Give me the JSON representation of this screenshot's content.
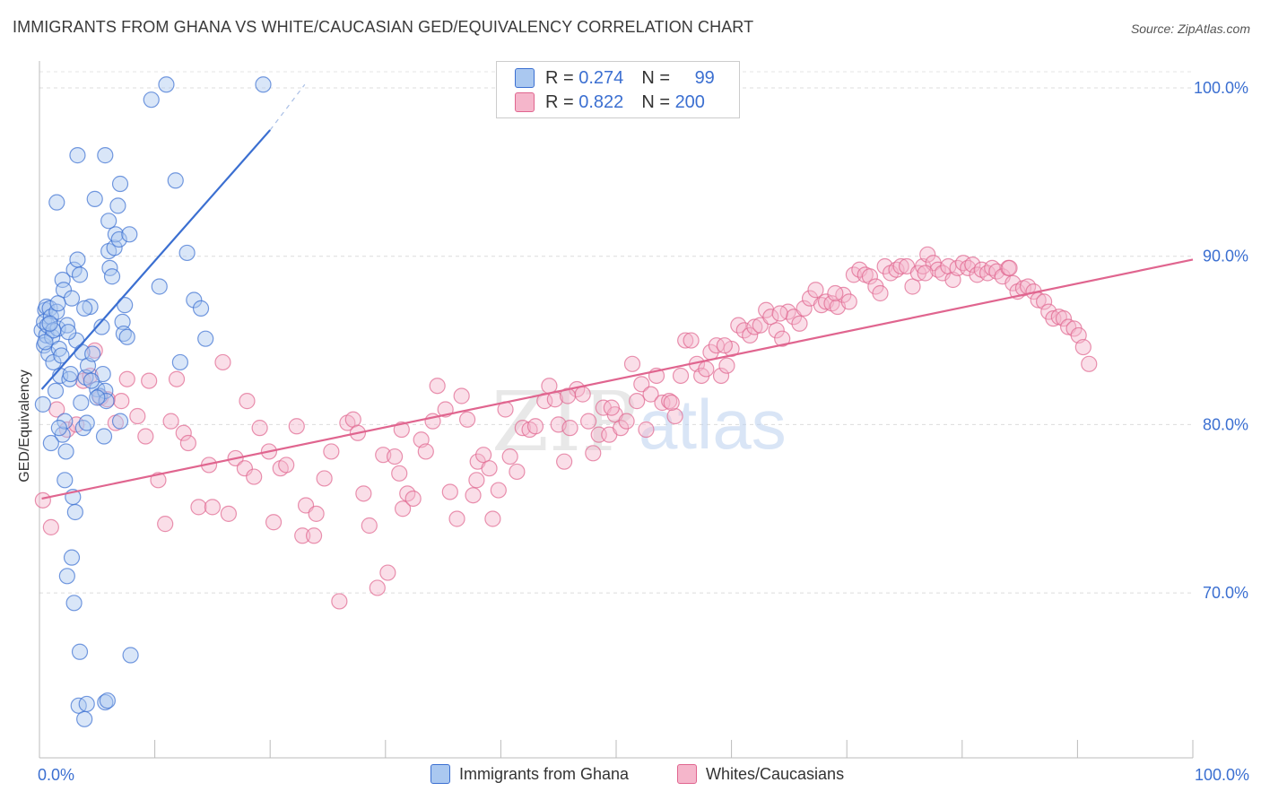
{
  "title": "IMMIGRANTS FROM GHANA VS WHITE/CAUCASIAN GED/EQUIVALENCY CORRELATION CHART",
  "source": "Source: ZipAtlas.com",
  "watermark": {
    "zip": "ZIP",
    "atlas": "atlas"
  },
  "colors": {
    "blue": "#3b6fd1",
    "blue_fill": "#aac8f0",
    "pink": "#e0658f",
    "pink_fill": "#f5b6cb",
    "axis_text": "#3b6fd1"
  },
  "legend_top": {
    "rows": [
      {
        "r_label": "R = ",
        "r_value": "0.274",
        "n_label": "N = ",
        "n_value": "99"
      },
      {
        "r_label": "R = ",
        "r_value": "0.822",
        "n_label": "N = ",
        "n_value": "200"
      }
    ]
  },
  "legend_bottom": {
    "items": [
      {
        "label": "Immigrants from Ghana"
      },
      {
        "label": "Whites/Caucasians"
      }
    ]
  },
  "chart_data": {
    "type": "scatter",
    "title": "IMMIGRANTS FROM GHANA VS WHITE/CAUCASIAN GED/EQUIVALENCY CORRELATION CHART",
    "xlabel": "",
    "ylabel": "GED/Equivalency",
    "xlim": [
      0,
      100
    ],
    "ylim": [
      60.2,
      101.6
    ],
    "x_tick_labels": [
      "0.0%",
      "100.0%"
    ],
    "y_ticks": [
      70,
      80,
      90,
      100
    ],
    "y_tick_labels": [
      "70.0%",
      "80.0%",
      "90.0%",
      "100.0%"
    ],
    "grid": true,
    "series": [
      {
        "name": "Immigrants from Ghana",
        "color": "#3b6fd1",
        "trend": {
          "x": [
            0.2,
            20
          ],
          "y": [
            82.1,
            97.5
          ],
          "dash_to": [
            23,
            100.2
          ]
        },
        "points": [
          [
            0.2,
            85.6
          ],
          [
            0.3,
            81.2
          ],
          [
            0.4,
            84.7
          ],
          [
            0.5,
            86.8
          ],
          [
            0.6,
            85.3
          ],
          [
            0.4,
            86.1
          ],
          [
            0.6,
            87.0
          ],
          [
            0.7,
            85.9
          ],
          [
            0.8,
            84.2
          ],
          [
            0.9,
            86.9
          ],
          [
            1.0,
            86.4
          ],
          [
            1.1,
            85.2
          ],
          [
            1.2,
            83.7
          ],
          [
            1.4,
            82.0
          ],
          [
            1.5,
            86.7
          ],
          [
            1.6,
            85.7
          ],
          [
            1.7,
            84.5
          ],
          [
            1.8,
            82.9
          ],
          [
            1.9,
            84.1
          ],
          [
            2.0,
            79.4
          ],
          [
            2.2,
            80.2
          ],
          [
            2.3,
            78.4
          ],
          [
            2.0,
            88.6
          ],
          [
            2.1,
            88.0
          ],
          [
            2.4,
            85.9
          ],
          [
            2.6,
            82.7
          ],
          [
            2.8,
            87.5
          ],
          [
            3.0,
            89.2
          ],
          [
            3.2,
            85.0
          ],
          [
            3.3,
            89.8
          ],
          [
            3.5,
            88.9
          ],
          [
            3.7,
            84.3
          ],
          [
            3.8,
            79.8
          ],
          [
            4.0,
            82.8
          ],
          [
            4.1,
            80.1
          ],
          [
            4.2,
            83.5
          ],
          [
            4.4,
            87.0
          ],
          [
            4.6,
            84.2
          ],
          [
            4.8,
            93.4
          ],
          [
            5.0,
            82.1
          ],
          [
            5.2,
            81.7
          ],
          [
            5.4,
            85.8
          ],
          [
            5.5,
            83.0
          ],
          [
            5.6,
            79.3
          ],
          [
            5.7,
            82.0
          ],
          [
            5.8,
            81.4
          ],
          [
            6.0,
            90.3
          ],
          [
            6.1,
            89.3
          ],
          [
            6.3,
            88.8
          ],
          [
            6.5,
            90.5
          ],
          [
            6.6,
            91.3
          ],
          [
            6.8,
            93.0
          ],
          [
            6.9,
            91.0
          ],
          [
            7.0,
            80.2
          ],
          [
            7.2,
            86.1
          ],
          [
            7.3,
            85.4
          ],
          [
            7.4,
            87.1
          ],
          [
            7.6,
            85.2
          ],
          [
            1.5,
            93.2
          ],
          [
            3.3,
            96.0
          ],
          [
            5.7,
            96.0
          ],
          [
            6.0,
            92.1
          ],
          [
            7.0,
            94.3
          ],
          [
            7.8,
            91.3
          ],
          [
            2.2,
            76.7
          ],
          [
            2.9,
            75.7
          ],
          [
            3.1,
            74.8
          ],
          [
            2.8,
            72.1
          ],
          [
            2.4,
            71.0
          ],
          [
            3.0,
            69.4
          ],
          [
            3.5,
            66.5
          ],
          [
            7.9,
            66.3
          ],
          [
            3.4,
            63.3
          ],
          [
            3.9,
            62.5
          ],
          [
            4.1,
            63.4
          ],
          [
            5.7,
            63.5
          ],
          [
            5.9,
            63.6
          ],
          [
            9.7,
            99.3
          ],
          [
            11.0,
            100.2
          ],
          [
            19.4,
            100.2
          ],
          [
            10.4,
            88.2
          ],
          [
            12.2,
            83.7
          ],
          [
            13.4,
            87.4
          ],
          [
            14.4,
            85.1
          ],
          [
            12.8,
            90.2
          ],
          [
            14.0,
            86.9
          ],
          [
            11.8,
            94.5
          ],
          [
            1.0,
            78.9
          ],
          [
            1.7,
            79.8
          ],
          [
            2.7,
            83.0
          ],
          [
            3.6,
            81.3
          ],
          [
            4.5,
            82.6
          ],
          [
            5.0,
            81.6
          ],
          [
            1.2,
            85.6
          ],
          [
            1.6,
            87.2
          ],
          [
            0.9,
            86.0
          ],
          [
            0.5,
            84.9
          ],
          [
            2.5,
            85.5
          ],
          [
            3.9,
            86.9
          ]
        ]
      },
      {
        "name": "Whites/Caucasians",
        "color": "#e0658f",
        "trend": {
          "x": [
            0.2,
            100
          ],
          "y": [
            75.6,
            89.8
          ]
        },
        "points": [
          [
            0.3,
            75.5
          ],
          [
            1.0,
            73.9
          ],
          [
            1.5,
            80.9
          ],
          [
            2.4,
            79.7
          ],
          [
            3.2,
            80.0
          ],
          [
            3.8,
            82.6
          ],
          [
            4.4,
            82.9
          ],
          [
            4.8,
            84.4
          ],
          [
            5.3,
            81.6
          ],
          [
            5.9,
            81.5
          ],
          [
            6.6,
            80.1
          ],
          [
            7.1,
            81.4
          ],
          [
            7.6,
            82.7
          ],
          [
            8.5,
            80.5
          ],
          [
            9.2,
            79.3
          ],
          [
            9.5,
            82.6
          ],
          [
            10.3,
            76.7
          ],
          [
            10.9,
            74.1
          ],
          [
            11.4,
            80.2
          ],
          [
            11.9,
            82.7
          ],
          [
            12.5,
            79.5
          ],
          [
            12.9,
            78.9
          ],
          [
            13.8,
            75.1
          ],
          [
            14.7,
            77.6
          ],
          [
            15.0,
            75.1
          ],
          [
            15.9,
            83.7
          ],
          [
            16.4,
            74.7
          ],
          [
            17.0,
            78.0
          ],
          [
            17.8,
            77.4
          ],
          [
            18.0,
            81.4
          ],
          [
            18.6,
            76.9
          ],
          [
            19.1,
            79.8
          ],
          [
            19.9,
            78.4
          ],
          [
            20.3,
            74.2
          ],
          [
            20.9,
            77.4
          ],
          [
            21.4,
            77.6
          ],
          [
            22.3,
            79.9
          ],
          [
            22.8,
            73.4
          ],
          [
            23.1,
            75.2
          ],
          [
            23.8,
            73.4
          ],
          [
            24.0,
            74.7
          ],
          [
            24.7,
            76.8
          ],
          [
            25.3,
            78.4
          ],
          [
            26.0,
            69.5
          ],
          [
            26.7,
            80.1
          ],
          [
            27.2,
            80.3
          ],
          [
            27.6,
            79.5
          ],
          [
            28.1,
            75.9
          ],
          [
            28.6,
            74.0
          ],
          [
            29.3,
            70.3
          ],
          [
            29.8,
            78.2
          ],
          [
            30.2,
            71.2
          ],
          [
            30.8,
            78.1
          ],
          [
            31.2,
            77.1
          ],
          [
            31.5,
            75.0
          ],
          [
            31.9,
            75.9
          ],
          [
            32.4,
            75.6
          ],
          [
            33.1,
            79.1
          ],
          [
            33.5,
            78.4
          ],
          [
            34.1,
            80.2
          ],
          [
            34.5,
            82.3
          ],
          [
            35.2,
            80.9
          ],
          [
            35.6,
            76.0
          ],
          [
            36.2,
            74.4
          ],
          [
            36.6,
            81.7
          ],
          [
            37.1,
            80.3
          ],
          [
            37.6,
            75.8
          ],
          [
            38.0,
            77.8
          ],
          [
            38.5,
            78.2
          ],
          [
            39.0,
            77.4
          ],
          [
            39.3,
            74.4
          ],
          [
            39.8,
            76.1
          ],
          [
            40.4,
            80.9
          ],
          [
            40.8,
            78.1
          ],
          [
            41.4,
            77.2
          ],
          [
            41.9,
            79.8
          ],
          [
            42.5,
            79.7
          ],
          [
            43.0,
            79.9
          ],
          [
            43.8,
            81.4
          ],
          [
            44.2,
            82.3
          ],
          [
            44.7,
            81.5
          ],
          [
            45.0,
            80.0
          ],
          [
            45.5,
            77.8
          ],
          [
            46.0,
            79.8
          ],
          [
            46.6,
            82.1
          ],
          [
            47.1,
            81.8
          ],
          [
            47.6,
            80.2
          ],
          [
            48.0,
            78.3
          ],
          [
            48.5,
            79.4
          ],
          [
            48.9,
            81.0
          ],
          [
            49.4,
            79.4
          ],
          [
            49.9,
            80.6
          ],
          [
            50.4,
            79.8
          ],
          [
            50.9,
            80.2
          ],
          [
            51.4,
            83.6
          ],
          [
            51.8,
            81.4
          ],
          [
            52.2,
            82.4
          ],
          [
            52.6,
            79.7
          ],
          [
            53.0,
            81.8
          ],
          [
            53.5,
            82.9
          ],
          [
            54.0,
            81.3
          ],
          [
            54.6,
            81.4
          ],
          [
            55.1,
            80.5
          ],
          [
            55.6,
            82.9
          ],
          [
            56.0,
            85.0
          ],
          [
            56.5,
            85.0
          ],
          [
            57.0,
            83.6
          ],
          [
            57.4,
            82.9
          ],
          [
            57.8,
            83.3
          ],
          [
            58.2,
            84.3
          ],
          [
            58.7,
            84.7
          ],
          [
            59.1,
            82.9
          ],
          [
            59.6,
            83.5
          ],
          [
            60.0,
            84.5
          ],
          [
            60.6,
            85.9
          ],
          [
            61.1,
            85.6
          ],
          [
            61.6,
            85.3
          ],
          [
            62.0,
            85.8
          ],
          [
            62.5,
            85.9
          ],
          [
            63.0,
            86.8
          ],
          [
            63.4,
            86.4
          ],
          [
            63.9,
            85.6
          ],
          [
            64.4,
            85.1
          ],
          [
            64.9,
            86.7
          ],
          [
            65.4,
            86.4
          ],
          [
            65.9,
            86.0
          ],
          [
            66.3,
            86.9
          ],
          [
            66.8,
            87.5
          ],
          [
            67.3,
            88.0
          ],
          [
            67.8,
            87.1
          ],
          [
            68.2,
            87.3
          ],
          [
            68.7,
            87.2
          ],
          [
            69.2,
            87.0
          ],
          [
            69.7,
            87.7
          ],
          [
            70.2,
            87.3
          ],
          [
            70.6,
            88.9
          ],
          [
            71.1,
            89.2
          ],
          [
            71.6,
            88.9
          ],
          [
            72.0,
            88.8
          ],
          [
            72.5,
            88.2
          ],
          [
            72.9,
            87.8
          ],
          [
            73.3,
            89.4
          ],
          [
            73.8,
            89.0
          ],
          [
            74.3,
            89.2
          ],
          [
            74.7,
            89.4
          ],
          [
            75.2,
            89.4
          ],
          [
            75.7,
            88.2
          ],
          [
            76.2,
            89.0
          ],
          [
            76.6,
            89.4
          ],
          [
            77.0,
            90.1
          ],
          [
            77.5,
            89.6
          ],
          [
            77.9,
            89.2
          ],
          [
            78.3,
            89.0
          ],
          [
            78.8,
            89.4
          ],
          [
            79.2,
            88.6
          ],
          [
            79.6,
            89.3
          ],
          [
            80.1,
            89.6
          ],
          [
            80.5,
            89.3
          ],
          [
            80.9,
            89.5
          ],
          [
            81.3,
            88.9
          ],
          [
            81.7,
            89.2
          ],
          [
            82.2,
            89.0
          ],
          [
            82.6,
            89.3
          ],
          [
            83.0,
            89.1
          ],
          [
            83.5,
            88.8
          ],
          [
            84.0,
            89.3
          ],
          [
            84.4,
            88.4
          ],
          [
            84.8,
            87.9
          ],
          [
            85.3,
            88.1
          ],
          [
            85.7,
            88.2
          ],
          [
            86.2,
            87.9
          ],
          [
            86.6,
            87.4
          ],
          [
            87.1,
            87.3
          ],
          [
            87.5,
            86.7
          ],
          [
            87.9,
            86.3
          ],
          [
            88.4,
            86.4
          ],
          [
            88.8,
            86.3
          ],
          [
            89.2,
            85.8
          ],
          [
            89.7,
            85.7
          ],
          [
            90.1,
            85.3
          ],
          [
            90.5,
            84.6
          ],
          [
            91.0,
            83.6
          ],
          [
            49.6,
            81.0
          ],
          [
            64.2,
            86.6
          ],
          [
            69.0,
            87.8
          ],
          [
            76.8,
            89.0
          ],
          [
            84.1,
            89.3
          ],
          [
            59.4,
            84.7
          ],
          [
            54.8,
            81.3
          ],
          [
            45.8,
            81.7
          ],
          [
            37.9,
            76.7
          ],
          [
            31.4,
            79.7
          ]
        ]
      }
    ]
  }
}
